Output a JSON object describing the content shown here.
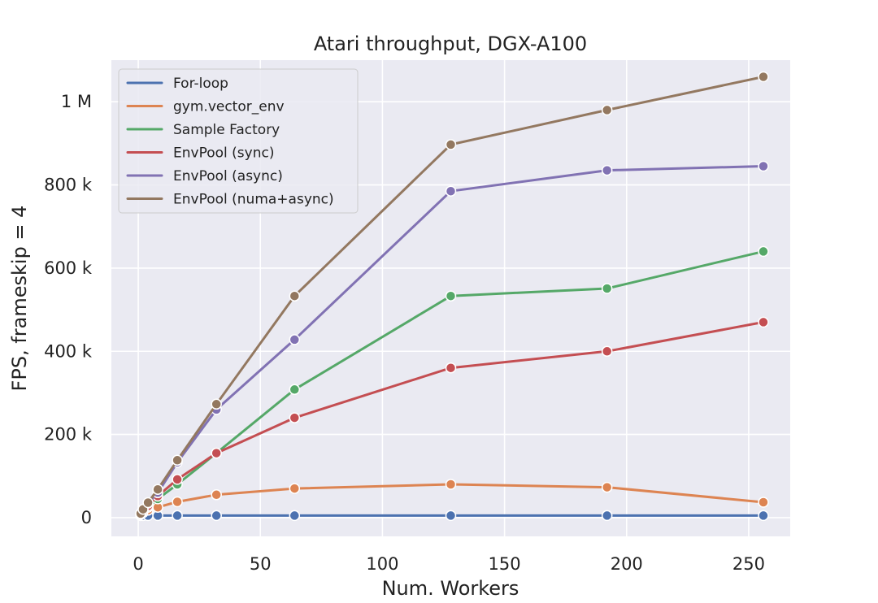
{
  "chart_data": {
    "type": "line",
    "title": "Atari throughput, DGX-A100",
    "xlabel": "Num. Workers",
    "ylabel": "FPS, frameskip = 4",
    "xlim": [
      -11,
      267
    ],
    "ylim": [
      -45000,
      1100000
    ],
    "xticks": [
      0,
      50,
      100,
      150,
      200,
      250
    ],
    "xtick_labels": [
      "0",
      "50",
      "100",
      "150",
      "200",
      "250"
    ],
    "yticks": [
      0,
      200000,
      400000,
      600000,
      800000,
      1000000
    ],
    "ytick_labels": [
      "0",
      "200 k",
      "400 k",
      "600 k",
      "800 k",
      "1 M"
    ],
    "grid": true,
    "legend_position": "top-left",
    "series": [
      {
        "name": "For-loop",
        "color": "#4c72b0",
        "points": [
          [
            1,
            5000
          ],
          [
            2,
            5000
          ],
          [
            4,
            5000
          ],
          [
            8,
            5000
          ],
          [
            16,
            5000
          ],
          [
            32,
            5000
          ],
          [
            64,
            5000
          ],
          [
            128,
            5000
          ],
          [
            192,
            5000
          ],
          [
            256,
            5000
          ]
        ]
      },
      {
        "name": "gym.vector_env",
        "color": "#dd8452",
        "points": [
          [
            1,
            8000
          ],
          [
            2,
            12000
          ],
          [
            4,
            18000
          ],
          [
            8,
            25000
          ],
          [
            16,
            38000
          ],
          [
            32,
            55000
          ],
          [
            64,
            70000
          ],
          [
            128,
            80000
          ],
          [
            192,
            73000
          ],
          [
            256,
            37000
          ]
        ]
      },
      {
        "name": "Sample Factory",
        "color": "#55a868",
        "points": [
          [
            1,
            8000
          ],
          [
            2,
            14000
          ],
          [
            4,
            25000
          ],
          [
            8,
            45000
          ],
          [
            16,
            80000
          ],
          [
            32,
            155000
          ],
          [
            64,
            308000
          ],
          [
            128,
            533000
          ],
          [
            192,
            551000
          ],
          [
            256,
            640000
          ]
        ]
      },
      {
        "name": "EnvPool (sync)",
        "color": "#c44e52",
        "points": [
          [
            1,
            8000
          ],
          [
            2,
            15000
          ],
          [
            4,
            28000
          ],
          [
            8,
            52000
          ],
          [
            16,
            92000
          ],
          [
            32,
            155000
          ],
          [
            64,
            240000
          ],
          [
            128,
            360000
          ],
          [
            192,
            400000
          ],
          [
            256,
            470000
          ]
        ]
      },
      {
        "name": "EnvPool (async)",
        "color": "#8172b3",
        "points": [
          [
            1,
            10000
          ],
          [
            2,
            20000
          ],
          [
            4,
            35000
          ],
          [
            8,
            60000
          ],
          [
            16,
            133000
          ],
          [
            32,
            260000
          ],
          [
            64,
            428000
          ],
          [
            128,
            785000
          ],
          [
            192,
            835000
          ],
          [
            256,
            845000
          ]
        ]
      },
      {
        "name": "EnvPool (numa+async)",
        "color": "#937860",
        "points": [
          [
            1,
            10000
          ],
          [
            2,
            20000
          ],
          [
            4,
            36000
          ],
          [
            8,
            68000
          ],
          [
            16,
            138000
          ],
          [
            32,
            273000
          ],
          [
            64,
            533000
          ],
          [
            128,
            897000
          ],
          [
            192,
            980000
          ],
          [
            256,
            1060000
          ]
        ]
      }
    ]
  }
}
